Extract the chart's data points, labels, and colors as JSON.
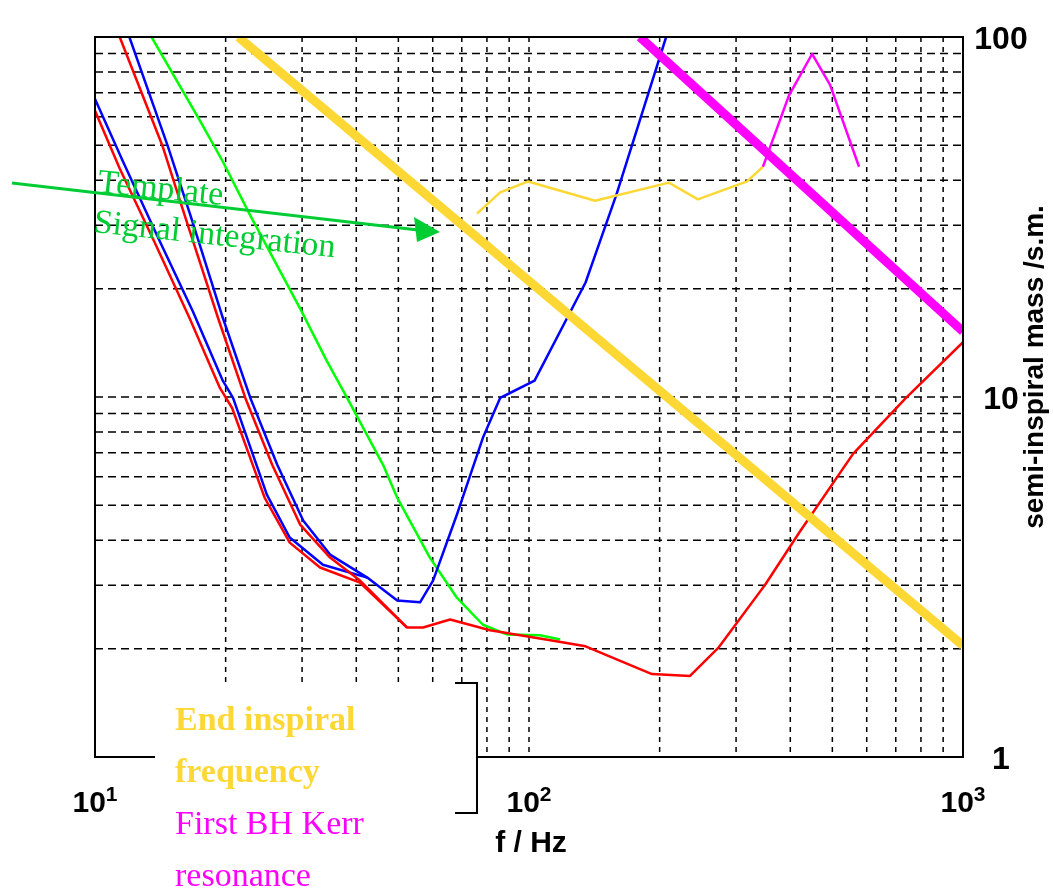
{
  "chart_data": {
    "type": "line",
    "xlabel": "f / Hz",
    "ylabel": "semi-inspiral mass /s.m.",
    "log": "xy",
    "grid": true,
    "legend": "bottom left",
    "xlim": [
      10,
      1000
    ],
    "ylim": [
      1,
      100
    ],
    "xticks": [
      {
        "value": 10,
        "label": "10$^{1}$"
      },
      {
        "value": 20,
        "label": null
      },
      {
        "value": 30,
        "label": null
      },
      {
        "value": 40,
        "label": null
      },
      {
        "value": 50,
        "label": null
      },
      {
        "value": 60,
        "label": null
      },
      {
        "value": 70,
        "label": null
      },
      {
        "value": 80,
        "label": null
      },
      {
        "value": 90,
        "label": null
      },
      {
        "value": 100,
        "label": "10$^{2}$"
      },
      {
        "value": 200,
        "label": null
      },
      {
        "value": 300,
        "label": null
      },
      {
        "value": 400,
        "label": null
      },
      {
        "value": 500,
        "label": null
      },
      {
        "value": 600,
        "label": null
      },
      {
        "value": 700,
        "label": null
      },
      {
        "value": 800,
        "label": null
      },
      {
        "value": 900,
        "label": null
      },
      {
        "value": 1000,
        "label": "10$^{3}$"
      }
    ],
    "yticks": [
      1,
      {
        "value": 2,
        "label": null
      },
      {
        "value": 3,
        "label": null
      },
      {
        "value": 4,
        "label": null
      },
      {
        "value": 5,
        "label": null
      },
      {
        "value": 6,
        "label": null
      },
      {
        "value": 7,
        "label": null
      },
      {
        "value": 8,
        "label": null
      },
      {
        "value": 9,
        "label": null
      },
      10,
      {
        "value": 20,
        "label": null
      },
      {
        "value": 30,
        "label": null
      },
      {
        "value": 40,
        "label": null
      },
      {
        "value": 50,
        "label": null
      },
      {
        "value": 60,
        "label": null
      },
      {
        "value": 70,
        "label": null
      },
      {
        "value": 80,
        "label": null
      },
      {
        "value": 90,
        "label": null
      },
      100
    ],
    "series": [
      {
        "color": "#0000ff",
        "x": [
          10,
          11.6,
          13.9,
          16.8,
          19.7,
          20.8,
          24.9,
          28.1,
          33.5,
          42.4
        ],
        "values": [
          67.3,
          45.1,
          28.1,
          17.3,
          11.1,
          9.94,
          5.35,
          4.07,
          3.42,
          3.15
        ]
      },
      {
        "color": "#ff0000",
        "x": [
          10,
          11.4,
          13.7,
          16.5,
          19.4,
          20.7,
          24.6,
          28.1,
          33,
          40.8,
          52.3
        ],
        "values": [
          62.4,
          43.1,
          27,
          16.6,
          10.6,
          9.32,
          5.25,
          3.94,
          3.36,
          3.05,
          2.29
        ]
      },
      {
        "color": "#00ff00",
        "x": [
          13.5,
          17.5,
          19.7,
          22.8,
          29.7,
          34.2,
          38.1,
          46.1,
          49.7,
          59.1,
          68.2,
          78.3,
          88.9,
          106,
          118
        ],
        "values": [
          100,
          58.2,
          45.1,
          31.9,
          17.6,
          12.6,
          9.94,
          6.48,
          5.25,
          3.58,
          2.77,
          2.33,
          2.19,
          2.18,
          2.12
        ]
      },
      {
        "color": "#0000ff",
        "x": [
          12,
          14.7,
          16.6,
          19.7,
          22.8,
          26.3,
          30.2,
          34.8,
          42.4,
          49.7,
          56.1,
          60.1,
          68.2,
          78.3,
          85.8,
          103,
          135,
          159,
          207
        ],
        "values": [
          100,
          49.9,
          31.9,
          16.6,
          9.94,
          6.48,
          4.53,
          3.65,
          3.15,
          2.72,
          2.69,
          3.09,
          4.71,
          7.7,
          9.94,
          11.1,
          20.8,
          36.5,
          100
        ]
      },
      {
        "color": "#ff0000",
        "x": [
          11.4,
          14.3,
          16.1,
          19.2,
          22.2,
          25.6,
          29.7,
          34.8,
          40.8,
          52.3,
          57,
          65.8,
          81.3,
          112,
          135,
          192,
          235,
          274,
          350,
          421,
          558,
          739,
          1000
        ],
        "values": [
          100,
          49.9,
          31.9,
          16.6,
          9.94,
          6.48,
          4.42,
          3.58,
          3.09,
          2.29,
          2.29,
          2.41,
          2.25,
          2.11,
          2.03,
          1.7,
          1.68,
          2.02,
          3.01,
          4.23,
          6.95,
          9.94,
          14.2
        ]
      },
      {
        "color": "#fdd835",
        "x": [
          75.9,
          85.8,
          99.5,
          142,
          210,
          245,
          318,
          346
        ],
        "values": [
          32.3,
          37,
          39.7,
          35.1,
          39.4,
          35.4,
          39.7,
          43.6
        ]
      },
      {
        "color": "#ff00ff",
        "x": [
          346,
          397,
          449,
          494,
          576
        ],
        "values": [
          43.6,
          68.7,
          89.7,
          73.6,
          43.6
        ]
      },
      {
        "name": "End inspiral frequency",
        "color": "#fdd835",
        "x": [
          21.4,
          1000
        ],
        "values": [
          100,
          2.04
        ]
      },
      {
        "name": "First BH Kerr resonance",
        "color": "#ff00ff",
        "x": [
          180,
          1000
        ],
        "values": [
          100,
          15.2
        ]
      }
    ],
    "annotations": [
      "Template\nSignal integration"
    ]
  }
}
